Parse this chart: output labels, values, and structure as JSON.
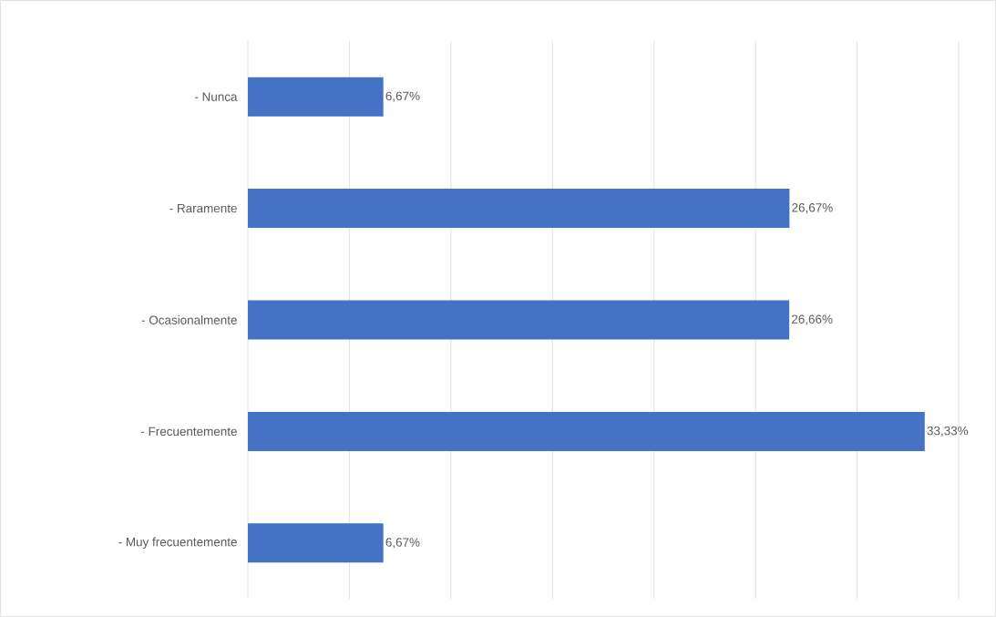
{
  "chart_data": {
    "type": "bar",
    "orientation": "horizontal",
    "categories": [
      "- Nunca",
      "- Raramente",
      "- Ocasionalmente",
      "- Frecuentemente",
      "- Muy frecuentemente"
    ],
    "values": [
      6.67,
      26.67,
      26.66,
      33.33,
      6.67
    ],
    "value_labels": [
      "6,67%",
      "26,67%",
      "26,66%",
      "33,33%",
      "6,67%"
    ],
    "color": "#4472c4",
    "xlim": [
      0,
      35
    ],
    "xticks": [
      {
        "value": 0,
        "label": null
      },
      {
        "value": 5,
        "label": null
      },
      {
        "value": 10,
        "label": null
      },
      {
        "value": 15,
        "label": null
      },
      {
        "value": 20,
        "label": null
      },
      {
        "value": 25,
        "label": null
      },
      {
        "value": 30,
        "label": null
      },
      {
        "value": 35,
        "label": null
      }
    ],
    "grid": "x",
    "tick_labels": "y"
  }
}
